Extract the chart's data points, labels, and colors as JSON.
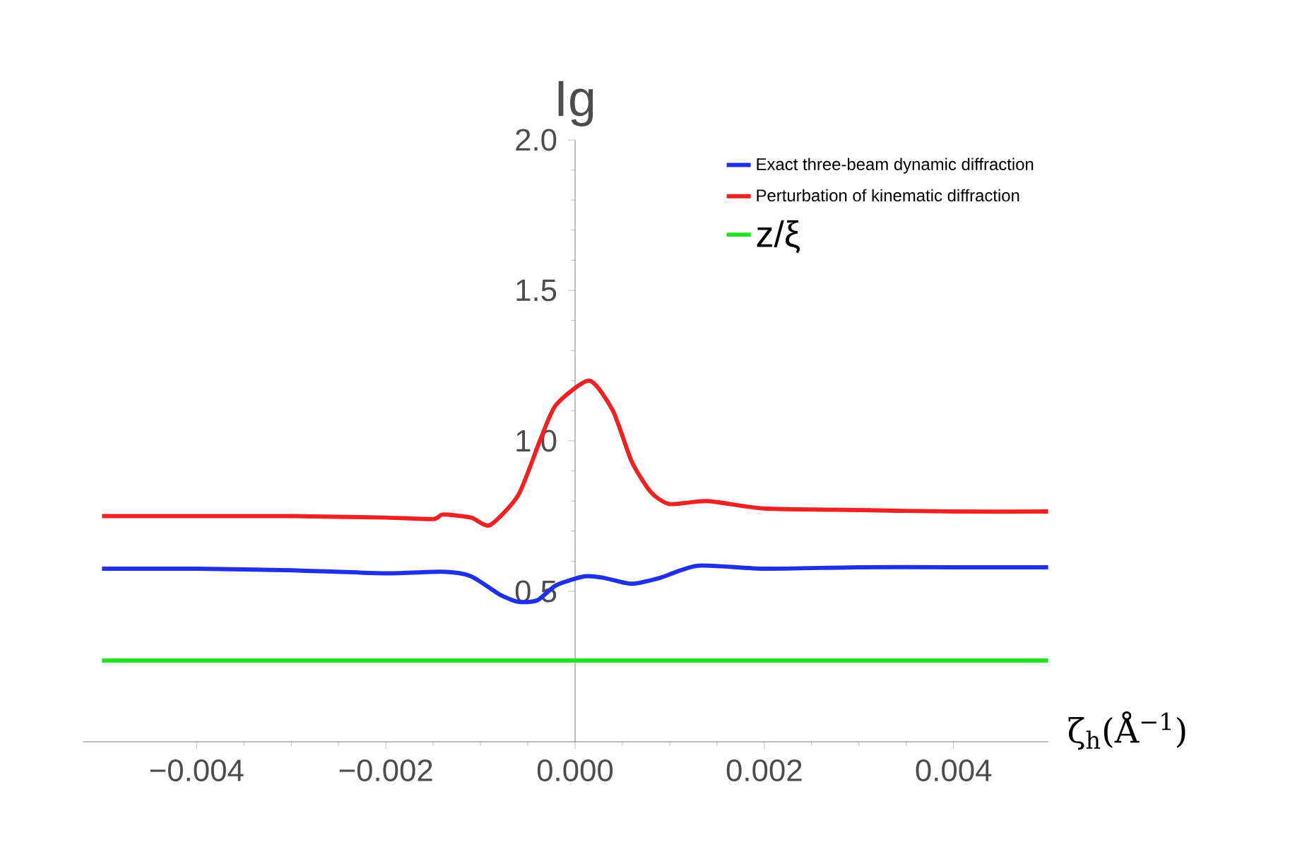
{
  "chart_data": {
    "type": "line",
    "xlabel": "ζ$_{h}$(Å$^{−1}$)",
    "ylabel": "Ig",
    "xlim": [
      -0.0052,
      0.005
    ],
    "ylim": [
      0,
      2.0
    ],
    "xticks": [
      {
        "value": -0.004,
        "label": "−0.004"
      },
      {
        "value": -0.002,
        "label": "−0.002"
      },
      {
        "value": 0,
        "label": "0.000"
      },
      {
        "value": 0.002,
        "label": "0.002"
      },
      {
        "value": 0.004,
        "label": "0.004"
      }
    ],
    "yticks": [
      {
        "value": 0.5,
        "label": "0.5"
      },
      {
        "value": 1.0,
        "label": "1.0"
      },
      {
        "value": 1.5,
        "label": "1.5"
      },
      {
        "value": 2.0,
        "label": "2.0"
      }
    ],
    "legend": "top right",
    "series": [
      {
        "name": "Exact three-beam dynamic diffraction",
        "color": "#2030e8",
        "x": [
          -0.005,
          -0.004,
          -0.003,
          -0.002,
          -0.0014,
          -0.0011,
          -0.0008,
          -0.0006,
          -0.0004,
          -0.0002,
          0.0001,
          0.0003,
          0.0006,
          0.0009,
          0.0013,
          0.002,
          0.003,
          0.004,
          0.005
        ],
        "values": [
          0.575,
          0.575,
          0.57,
          0.56,
          0.565,
          0.55,
          0.49,
          0.465,
          0.47,
          0.52,
          0.55,
          0.545,
          0.525,
          0.545,
          0.585,
          0.575,
          0.58,
          0.58,
          0.58
        ]
      },
      {
        "name": "Perturbation of  kinematic diffraction",
        "color": "#ee2222",
        "x": [
          -0.005,
          -0.004,
          -0.003,
          -0.002,
          -0.0015,
          -0.0014,
          -0.0011,
          -0.0009,
          -0.0006,
          -0.00036,
          -0.0002,
          0.00015,
          0.0004,
          0.0006,
          0.0008,
          0.001,
          0.0014,
          0.002,
          0.003,
          0.004,
          0.005
        ],
        "values": [
          0.75,
          0.75,
          0.75,
          0.745,
          0.74,
          0.755,
          0.745,
          0.72,
          0.82,
          1.01,
          1.12,
          1.2,
          1.1,
          0.93,
          0.83,
          0.79,
          0.8,
          0.775,
          0.77,
          0.765,
          0.765
        ]
      },
      {
        "name": "z/ξ",
        "color": "#22e022",
        "x": [
          -0.005,
          0.005
        ],
        "values": [
          0.27,
          0.27
        ]
      }
    ]
  }
}
